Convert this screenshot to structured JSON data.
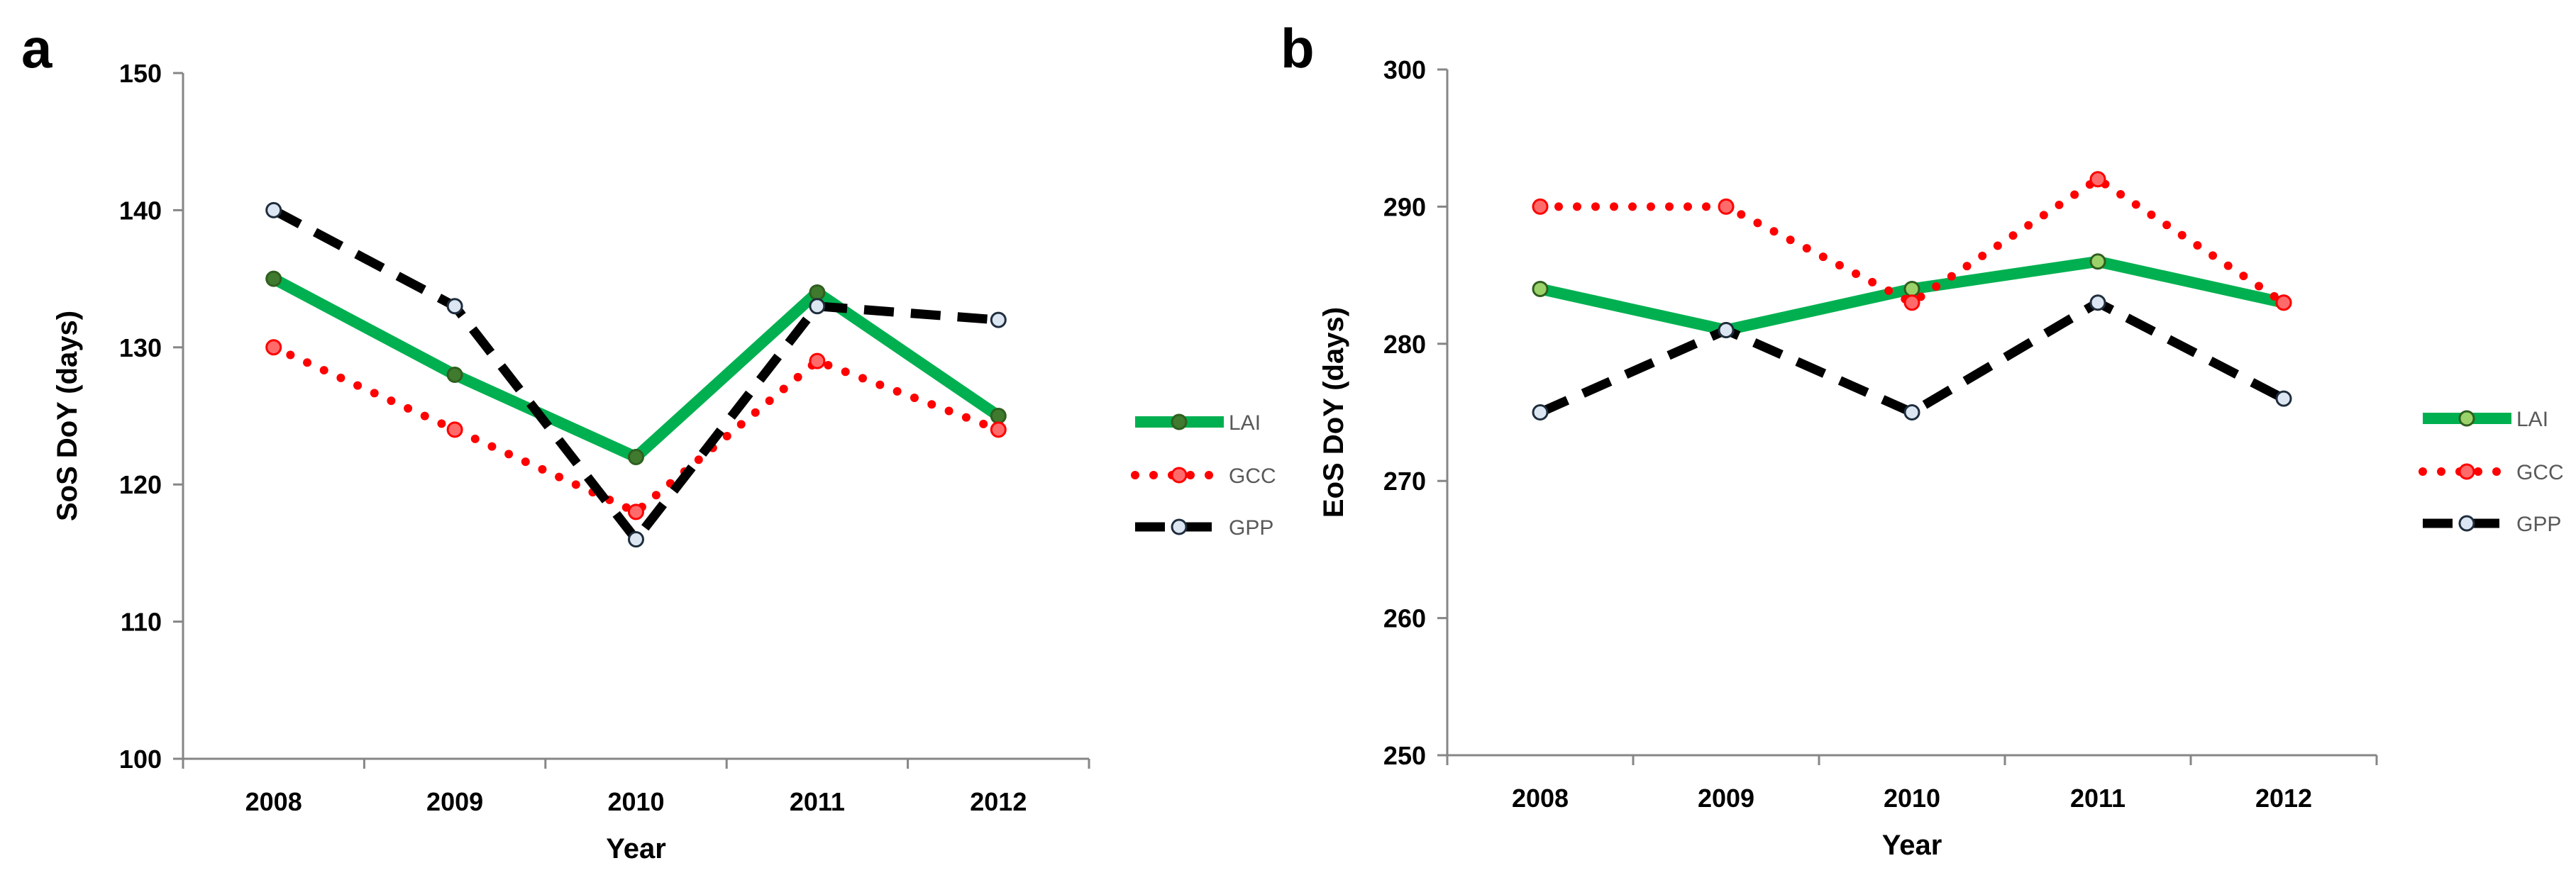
{
  "figure": {
    "panel_labels": [
      "a",
      "b"
    ]
  },
  "chart_data": [
    {
      "type": "line",
      "panel": "a",
      "categories": [
        "2008",
        "2009",
        "2010",
        "2011",
        "2012"
      ],
      "xlabel": "Year",
      "ylabel": "SoS DoY (days)",
      "ylim": [
        100,
        150
      ],
      "yticks": [
        100,
        110,
        120,
        130,
        140,
        150
      ],
      "grid": false,
      "legend_position": "right",
      "series": [
        {
          "name": "LAI",
          "values": [
            135,
            128,
            122,
            134,
            125
          ],
          "color": "#00b050",
          "dash": "solid",
          "marker_fill": "#3f7a2e"
        },
        {
          "name": "GCC",
          "values": [
            130,
            124,
            118,
            129,
            124
          ],
          "color": "#ff0000",
          "dash": "dot",
          "marker_fill": "#ff6b6b"
        },
        {
          "name": "GPP",
          "values": [
            140,
            133,
            116,
            133,
            132
          ],
          "color": "#000000",
          "dash": "dash",
          "marker_fill": "#dce6f2"
        }
      ]
    },
    {
      "type": "line",
      "panel": "b",
      "categories": [
        "2008",
        "2009",
        "2010",
        "2011",
        "2012"
      ],
      "xlabel": "Year",
      "ylabel": "EoS DoY (days)",
      "ylim": [
        250,
        300
      ],
      "yticks": [
        250,
        260,
        270,
        280,
        290,
        300
      ],
      "grid": false,
      "legend_position": "right",
      "series": [
        {
          "name": "LAI",
          "values": [
            284,
            281,
            284,
            286,
            283
          ],
          "color": "#00b050",
          "dash": "solid",
          "marker_fill": "#9bd36a"
        },
        {
          "name": "GCC",
          "values": [
            290,
            290,
            283,
            292,
            283
          ],
          "color": "#ff0000",
          "dash": "dot",
          "marker_fill": "#ff6b6b"
        },
        {
          "name": "GPP",
          "values": [
            275,
            281,
            275,
            283,
            276
          ],
          "color": "#000000",
          "dash": "dash",
          "marker_fill": "#dce6f2"
        }
      ]
    }
  ]
}
